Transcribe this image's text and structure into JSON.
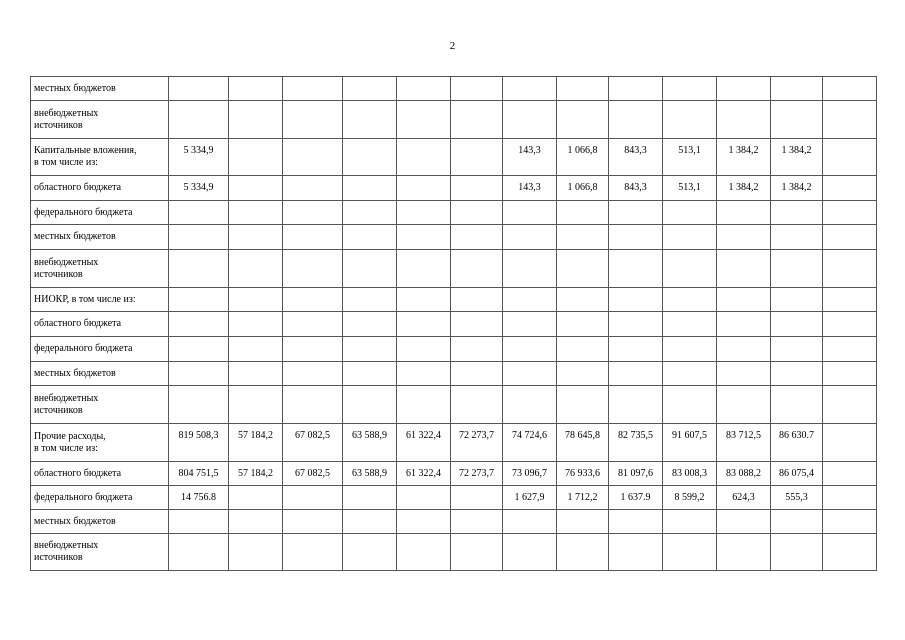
{
  "page_number": "2",
  "table": {
    "rows": [
      {
        "label": [
          "местных бюджетов"
        ],
        "values": [
          "",
          "",
          "",
          "",
          "",
          "",
          "",
          "",
          "",
          "",
          "",
          "",
          ""
        ]
      },
      {
        "label": [
          "внебюджетных",
          "источников"
        ],
        "values": [
          "",
          "",
          "",
          "",
          "",
          "",
          "",
          "",
          "",
          "",
          "",
          "",
          ""
        ]
      },
      {
        "label": [
          "Капитальные вложения,",
          "в том числе из:"
        ],
        "values": [
          "5 334,9",
          "",
          "",
          "",
          "",
          "",
          "143,3",
          "1 066,8",
          "843,3",
          "513,1",
          "1 384,2",
          "1 384,2",
          ""
        ]
      },
      {
        "label": [
          "областного бюджета"
        ],
        "values": [
          "5 334,9",
          "",
          "",
          "",
          "",
          "",
          "143,3",
          "1 066,8",
          "843,3",
          "513,1",
          "1 384,2",
          "1 384,2",
          ""
        ]
      },
      {
        "label": [
          "федерального бюджета"
        ],
        "values": [
          "",
          "",
          "",
          "",
          "",
          "",
          "",
          "",
          "",
          "",
          "",
          "",
          ""
        ]
      },
      {
        "label": [
          "местных бюджетов"
        ],
        "values": [
          "",
          "",
          "",
          "",
          "",
          "",
          "",
          "",
          "",
          "",
          "",
          "",
          ""
        ]
      },
      {
        "label": [
          "внебюджетных",
          "источников"
        ],
        "values": [
          "",
          "",
          "",
          "",
          "",
          "",
          "",
          "",
          "",
          "",
          "",
          "",
          ""
        ]
      },
      {
        "label": [
          "НИОКР, в том числе из:"
        ],
        "values": [
          "",
          "",
          "",
          "",
          "",
          "",
          "",
          "",
          "",
          "",
          "",
          "",
          ""
        ]
      },
      {
        "label": [
          "областного бюджета"
        ],
        "values": [
          "",
          "",
          "",
          "",
          "",
          "",
          "",
          "",
          "",
          "",
          "",
          "",
          ""
        ]
      },
      {
        "label": [
          "федерального бюджета"
        ],
        "values": [
          "",
          "",
          "",
          "",
          "",
          "",
          "",
          "",
          "",
          "",
          "",
          "",
          ""
        ]
      },
      {
        "label": [
          "местных бюджетов"
        ],
        "values": [
          "",
          "",
          "",
          "",
          "",
          "",
          "",
          "",
          "",
          "",
          "",
          "",
          ""
        ]
      },
      {
        "label": [
          "внебюджетных",
          "источников"
        ],
        "values": [
          "",
          "",
          "",
          "",
          "",
          "",
          "",
          "",
          "",
          "",
          "",
          "",
          ""
        ]
      },
      {
        "label": [
          "Прочие расходы,",
          "в том числе из:"
        ],
        "values": [
          "819 508,3",
          "57 184,2",
          "67 082,5",
          "63 588,9",
          "61 322,4",
          "72 273,7",
          "74 724,6",
          "78 645,8",
          "82 735,5",
          "91 607,5",
          "83 712,5",
          "86 630.7",
          ""
        ]
      },
      {
        "label": [
          "областного бюджета"
        ],
        "values": [
          "804 751,5",
          "57 184,2",
          "67 082,5",
          "63 588,9",
          "61 322,4",
          "72 273,7",
          "73 096,7",
          "76 933,6",
          "81 097,6",
          "83 008,3",
          "83 088,2",
          "86 075,4",
          ""
        ]
      },
      {
        "label": [
          "федерального бюджета"
        ],
        "values": [
          "14 756.8",
          "",
          "",
          "",
          "",
          "",
          "1 627,9",
          "1 712,2",
          "1 637.9",
          "8 599,2",
          "624,3",
          "555,3",
          ""
        ]
      },
      {
        "label": [
          "местных бюджетов"
        ],
        "values": [
          "",
          "",
          "",
          "",
          "",
          "",
          "",
          "",
          "",
          "",
          "",
          "",
          ""
        ]
      },
      {
        "label": [
          "внебюджетных",
          "источников"
        ],
        "values": [
          "",
          "",
          "",
          "",
          "",
          "",
          "",
          "",
          "",
          "",
          "",
          "",
          ""
        ]
      }
    ]
  }
}
